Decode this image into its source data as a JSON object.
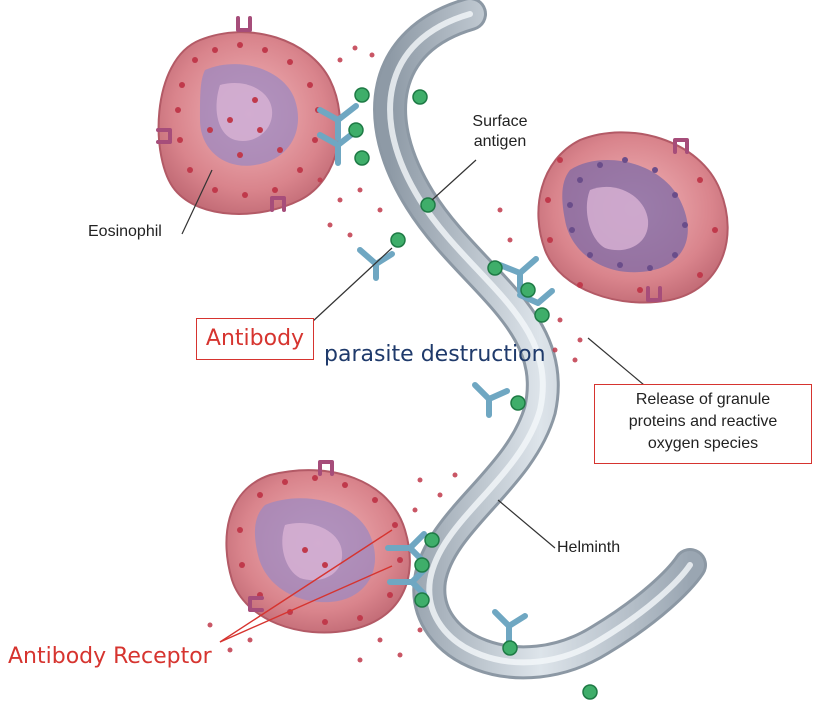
{
  "labels": {
    "eosinophil": "Eosinophil",
    "surface_antigen_line1": "Surface",
    "surface_antigen_line2": "antigen",
    "antibody": "Antibody",
    "parasite_destruction": "parasite destruction",
    "release_line1": "Release of granule",
    "release_line2": "proteins and reactive",
    "release_line3": "oxygen species",
    "helminth": "Helminth",
    "antibody_receptor": "Antibody Receptor"
  },
  "colors": {
    "cell_fill": "#d9848c",
    "nucleus": "#7e6aa6",
    "granule": "#c0394b",
    "helminth": "#b9c4cf",
    "antibody": "#6fa7c2",
    "antigen": "#3fae6a",
    "highlight_red": "#d6342f",
    "title_blue": "#1f3a6b"
  }
}
